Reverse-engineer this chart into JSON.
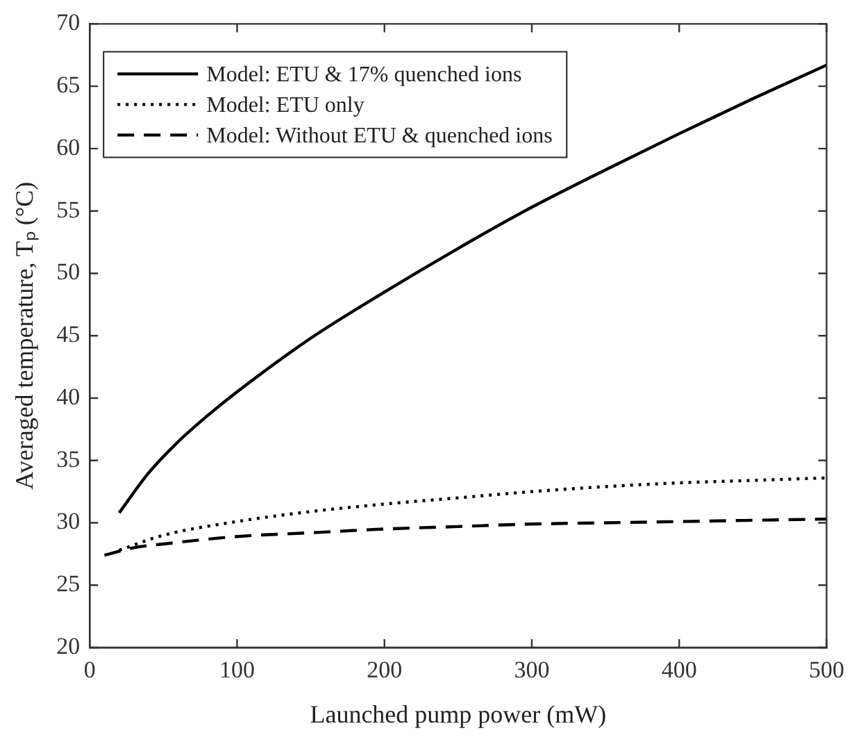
{
  "chart_data": {
    "type": "line",
    "xlabel": "Launched pump power (mW)",
    "ylabel": "Averaged temperature, Tₚ (°C)",
    "xlim": [
      0,
      500
    ],
    "xticks": [
      0,
      100,
      200,
      300,
      400,
      500
    ],
    "ylim": [
      20,
      70
    ],
    "yticks": [
      20,
      25,
      30,
      35,
      40,
      45,
      50,
      55,
      60,
      65,
      70
    ],
    "grid": false,
    "legend": "top left",
    "marker": "none",
    "series": [
      {
        "name": "Model: ETU & 17% quenched ions",
        "color": "#000000",
        "line_style": "solid",
        "x": [
          20,
          40,
          60,
          80,
          100,
          150,
          200,
          250,
          300,
          350,
          400,
          450,
          500
        ],
        "values": [
          30.8,
          34,
          36.5,
          38.6,
          40.5,
          44.8,
          48.5,
          52,
          55.3,
          58.3,
          61.2,
          64,
          66.7
        ]
      },
      {
        "name": "Model: ETU only",
        "color": "#000000",
        "line_style": "dotted",
        "x": [
          20,
          50,
          100,
          150,
          200,
          250,
          300,
          350,
          400,
          450,
          500
        ],
        "values": [
          27.8,
          29,
          30.1,
          30.9,
          31.5,
          32,
          32.5,
          32.9,
          33.2,
          33.4,
          33.6
        ]
      },
      {
        "name": "Model: Without ETU & quenched ions",
        "color": "#000000",
        "line_style": "dashed",
        "x": [
          10,
          30,
          50,
          100,
          150,
          200,
          250,
          300,
          350,
          400,
          450,
          500
        ],
        "values": [
          27.4,
          28,
          28.3,
          28.9,
          29.2,
          29.5,
          29.7,
          29.9,
          30,
          30.1,
          30.2,
          30.3
        ]
      }
    ]
  }
}
